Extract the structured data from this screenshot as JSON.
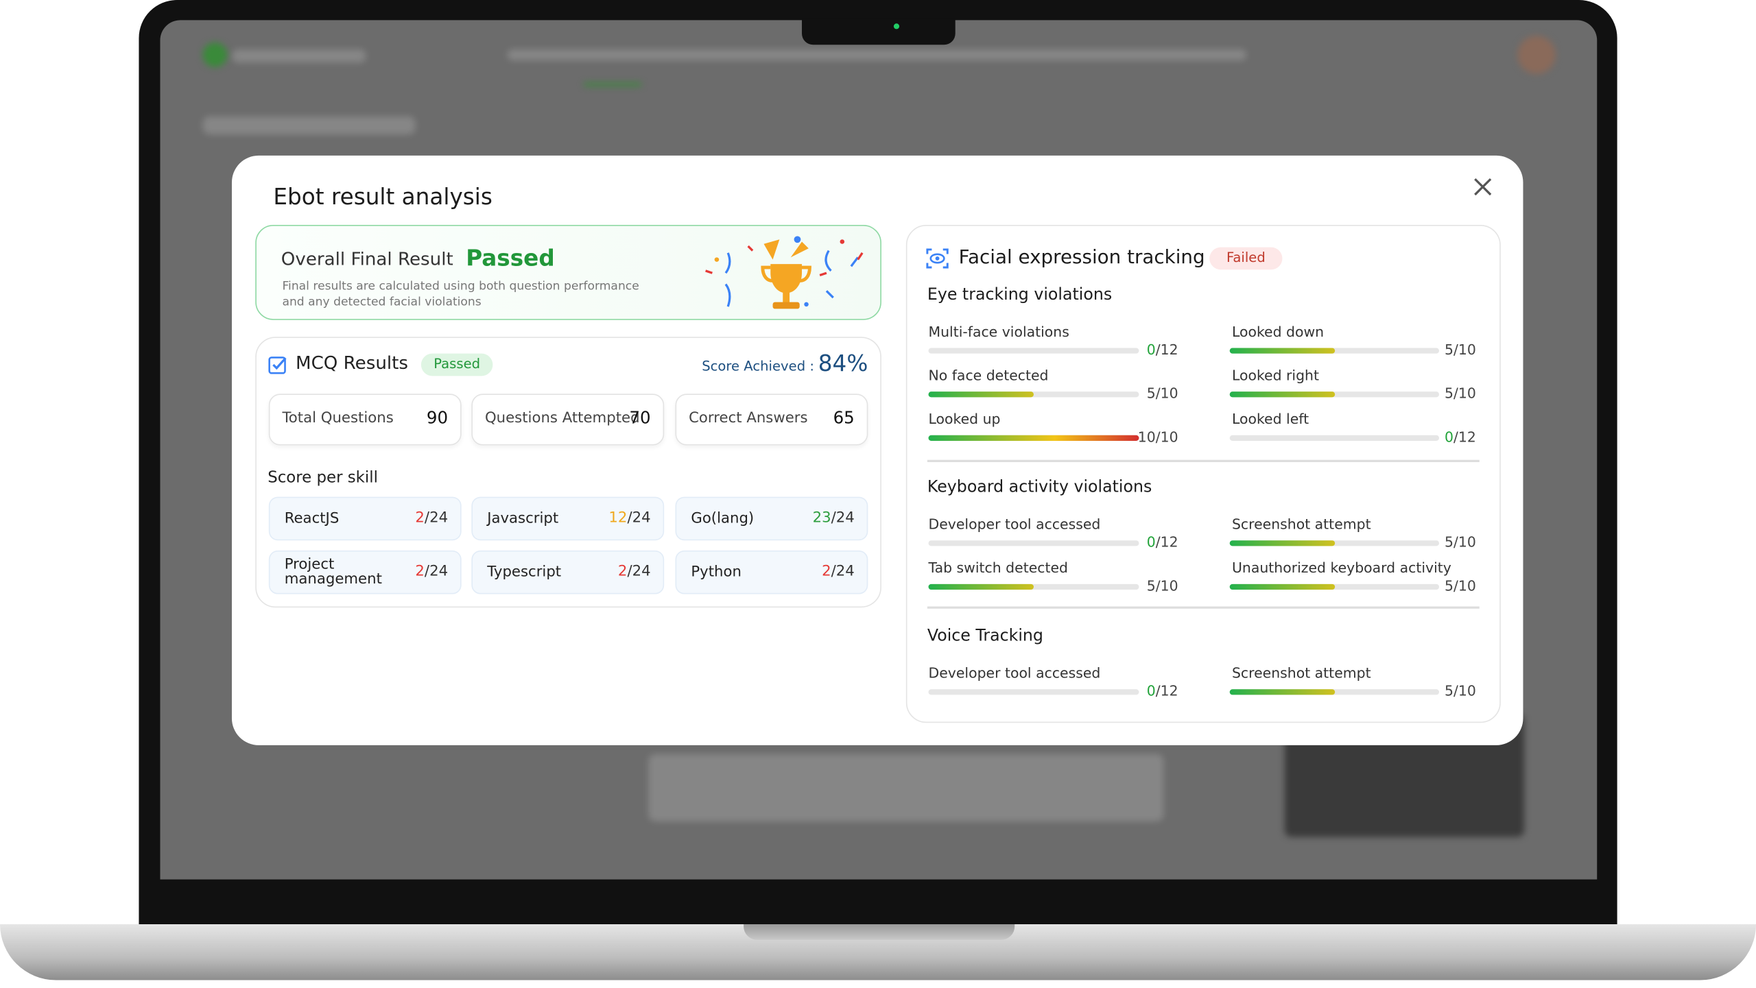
{
  "modal": {
    "title": "Ebot result analysis"
  },
  "overall": {
    "label": "Overall Final Result",
    "status": "Passed",
    "note": [
      "Final results are calculated using both question performance",
      "and any detected facial violations"
    ]
  },
  "mcq": {
    "title": "MCQ Results",
    "status": "Passed",
    "score_label": "Score Achieved :",
    "score": "84%",
    "stats": [
      {
        "label": "Total Questions",
        "value": 90
      },
      {
        "label": "Questions Attempted",
        "value": 70
      },
      {
        "label": "Correct Answers",
        "value": 65
      }
    ],
    "skills_title": "Score per skill",
    "skills": [
      {
        "name": "ReactJS",
        "score": 2,
        "total": "/24",
        "color": "#e53935"
      },
      {
        "name": "Javascript",
        "score": 12,
        "total": "/24",
        "color": "#f0a81c"
      },
      {
        "name": "Go(lang)",
        "score": 23,
        "total": "/24",
        "color": "#2e9e3e"
      },
      {
        "name": "Project management",
        "score": 2,
        "total": "/24",
        "color": "#e53935"
      },
      {
        "name": "Typescript",
        "score": 2,
        "total": "/24",
        "color": "#e53935"
      },
      {
        "name": "Python",
        "score": 2,
        "total": "/24",
        "color": "#e53935"
      }
    ]
  },
  "facial": {
    "title": "Facial expression tracking",
    "status": "Failed",
    "sections": [
      {
        "title": "Eye tracking violations",
        "left": [
          {
            "label": "Multi-face violations",
            "value": 0,
            "max": {
              "value": 12,
              "label": "/12"
            }
          },
          {
            "label": "No face detected",
            "value": 5,
            "max": {
              "value": 10,
              "label": "/10"
            }
          },
          {
            "label": "Looked up",
            "value": 10,
            "max": {
              "value": 10,
              "label": "/10"
            }
          }
        ],
        "right": [
          {
            "label": "Looked down",
            "value": 5,
            "max": {
              "value": 10,
              "label": "/10"
            }
          },
          {
            "label": "Looked right",
            "value": 5,
            "max": {
              "value": 10,
              "label": "/10"
            }
          },
          {
            "label": "Looked left",
            "value": 0,
            "max": {
              "value": 12,
              "label": "/12"
            }
          }
        ]
      },
      {
        "title": "Keyboard activity violations",
        "left": [
          {
            "label": "Developer tool accessed",
            "value": 0,
            "max": {
              "value": 12,
              "label": "/12"
            }
          },
          {
            "label": "Tab switch detected",
            "value": 5,
            "max": {
              "value": 10,
              "label": "/10"
            }
          }
        ],
        "right": [
          {
            "label": "Screenshot attempt",
            "value": 5,
            "max": {
              "value": 10,
              "label": "/10"
            }
          },
          {
            "label": "Unauthorized keyboard activity",
            "value": 5,
            "max": {
              "value": 10,
              "label": "/10"
            }
          }
        ]
      },
      {
        "title": "Voice Tracking",
        "left": [
          {
            "label": "Developer tool accessed",
            "value": 0,
            "max": {
              "value": 12,
              "label": "/12"
            }
          }
        ],
        "right": [
          {
            "label": "Screenshot attempt",
            "value": 5,
            "max": {
              "value": 10,
              "label": "/10"
            }
          }
        ]
      }
    ]
  }
}
